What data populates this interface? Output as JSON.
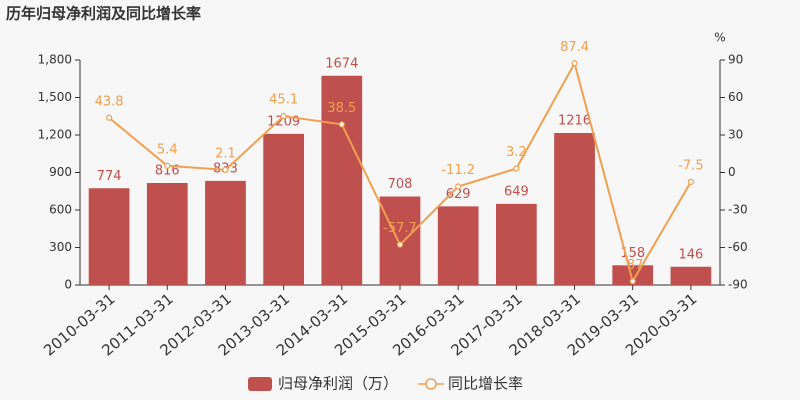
{
  "chart_data": {
    "type": "combo",
    "title": "历年归母净利润及同比增长率",
    "y2label": "%",
    "categories": [
      "2010-03-31",
      "2011-03-31",
      "2012-03-31",
      "2013-03-31",
      "2014-03-31",
      "2015-03-31",
      "2016-03-31",
      "2017-03-31",
      "2018-03-31",
      "2019-03-31",
      "2020-03-31"
    ],
    "series": [
      {
        "name": "归母净利润（万）",
        "type": "bar",
        "color": "#c0504d",
        "values": [
          774,
          816,
          833,
          1209,
          1674,
          708,
          629,
          649,
          1216,
          158,
          146
        ]
      },
      {
        "name": "同比增长率",
        "type": "line",
        "axis": "y2",
        "color": "#f0a050",
        "values": [
          43.8,
          5.4,
          2.1,
          45.1,
          38.5,
          -57.7,
          -11.2,
          3.2,
          87.4,
          -87,
          -7.5
        ]
      }
    ],
    "ylim": [
      0,
      1800
    ],
    "yticks": [
      0,
      300,
      600,
      900,
      {
        "value": 1200,
        "label": "1,200"
      },
      {
        "value": 1500,
        "label": "1,500"
      },
      {
        "value": 1800,
        "label": "1,800"
      }
    ],
    "y2lim": [
      -90,
      90
    ],
    "y2ticks": [
      -90,
      -60,
      -30,
      0,
      30,
      60,
      90
    ]
  }
}
